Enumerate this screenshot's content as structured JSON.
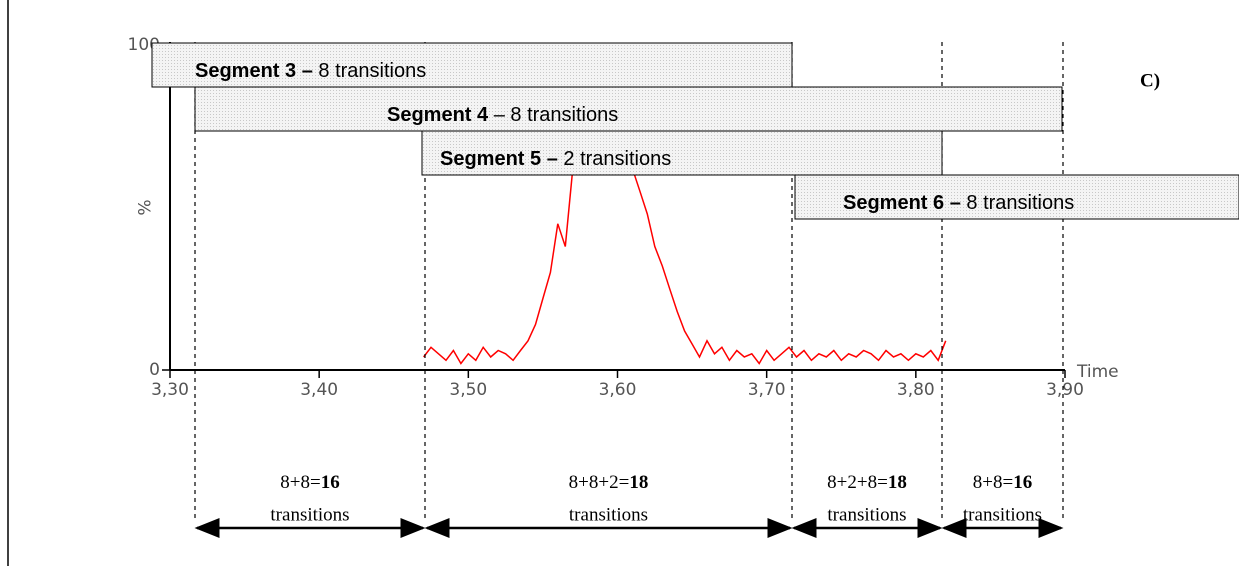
{
  "chart_data": {
    "type": "line",
    "label": "C)",
    "xlabel": "Time",
    "ylabel": "%",
    "xlim": [
      3.3,
      3.9
    ],
    "xticks": [
      {
        "value": 3.3,
        "label": "3,30"
      },
      {
        "value": 3.4,
        "label": "3,40"
      },
      {
        "value": 3.5,
        "label": "3,50"
      },
      {
        "value": 3.6,
        "label": "3,60"
      },
      {
        "value": 3.7,
        "label": "3,70"
      },
      {
        "value": 3.8,
        "label": "3,80"
      },
      {
        "value": 3.9,
        "label": "3,90"
      }
    ],
    "ylim": [
      0,
      100
    ],
    "yticks": [
      0,
      100
    ],
    "x": [
      3.47,
      3.475,
      3.48,
      3.485,
      3.49,
      3.495,
      3.5,
      3.505,
      3.51,
      3.515,
      3.52,
      3.525,
      3.53,
      3.535,
      3.54,
      3.545,
      3.55,
      3.555,
      3.56,
      3.565,
      3.57,
      3.575,
      3.58,
      3.585,
      3.59,
      3.595,
      3.6,
      3.605,
      3.61,
      3.615,
      3.62,
      3.625,
      3.63,
      3.635,
      3.64,
      3.645,
      3.65,
      3.655,
      3.66,
      3.665,
      3.67,
      3.675,
      3.68,
      3.685,
      3.69,
      3.695,
      3.7,
      3.705,
      3.71,
      3.715,
      3.72,
      3.725,
      3.73,
      3.735,
      3.74,
      3.745,
      3.75,
      3.755,
      3.76,
      3.765,
      3.77,
      3.775,
      3.78,
      3.785,
      3.79,
      3.795,
      3.8,
      3.805,
      3.81,
      3.815,
      3.82
    ],
    "series": [
      {
        "color": "#ff0000",
        "values": [
          4,
          7,
          5,
          3,
          6,
          2,
          5,
          3,
          7,
          4,
          6,
          5,
          3,
          6,
          9,
          14,
          22,
          30,
          45,
          38,
          62,
          70,
          82,
          78,
          88,
          80,
          72,
          76,
          62,
          55,
          48,
          38,
          32,
          25,
          18,
          12,
          8,
          4,
          9,
          5,
          7,
          3,
          6,
          4,
          5,
          2,
          6,
          3,
          5,
          7,
          4,
          6,
          3,
          5,
          4,
          6,
          3,
          5,
          4,
          6,
          5,
          3,
          6,
          4,
          5,
          3,
          5,
          4,
          6,
          3,
          9
        ]
      }
    ],
    "segments": [
      {
        "bold": "Segment 3 –",
        "text": " 8 transitions"
      },
      {
        "bold": "Segment 4",
        "text": " – 8 transitions"
      },
      {
        "bold": "Segment 5 –",
        "text": " 2 transitions"
      },
      {
        "bold": "Segment 6 –",
        "text": " 8 transitions"
      }
    ],
    "windows": [
      {
        "sum": "8+8=",
        "total": "16",
        "unit": "transitions"
      },
      {
        "sum": "8+8+2=",
        "total": "18",
        "unit": "transitions"
      },
      {
        "sum": "8+2+8=",
        "total": "18",
        "unit": "transitions"
      },
      {
        "sum": "8+8=",
        "total": "16",
        "unit": "transitions"
      }
    ]
  }
}
